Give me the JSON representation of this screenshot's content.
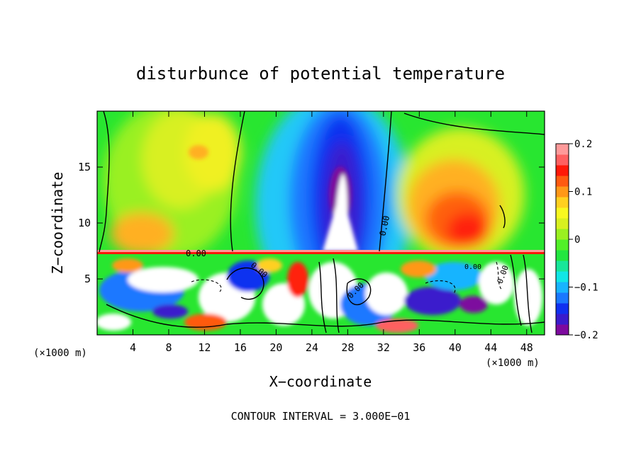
{
  "chart_data": {
    "type": "heatmap",
    "title": "disturbunce of potential temperature",
    "xlabel": "X−coordinate",
    "ylabel": "Z−coordinate",
    "x_unit": "(×1000 m)",
    "y_unit": "(×1000 m)",
    "xlim": [
      0,
      50
    ],
    "ylim": [
      0,
      20
    ],
    "x_ticks": [
      4,
      8,
      12,
      16,
      20,
      24,
      28,
      32,
      36,
      40,
      44,
      48
    ],
    "y_ticks": [
      5,
      10,
      15
    ],
    "colorbar": {
      "min": -0.2,
      "max": 0.2,
      "tick_values": [
        0.2,
        0.1,
        0,
        -0.1,
        -0.2
      ],
      "tick_labels": [
        "0.2",
        "0.1",
        "0",
        "−0.1",
        "−0.2"
      ],
      "colors": [
        "#7d0a9e",
        "#3a1ccc",
        "#1030f0",
        "#1a78ff",
        "#18b4ff",
        "#10e6e6",
        "#18e69a",
        "#22e640",
        "#52f028",
        "#9af020",
        "#d8f020",
        "#f8f820",
        "#ffd020",
        "#ff9818",
        "#ff5a10",
        "#ff1808",
        "#ff6060",
        "#ff9a9a"
      ]
    },
    "contour_labels": [
      "0.00",
      "0.00",
      "0.00",
      "0.00",
      "0.00",
      "0.00"
    ],
    "footer": "CONTOUR INTERVAL = 3.000E−01"
  }
}
